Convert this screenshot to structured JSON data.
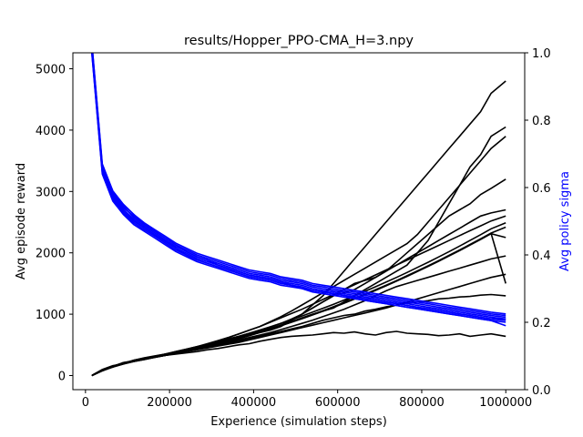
{
  "chart_data": {
    "type": "line",
    "title": "results/Hopper_PPO-CMA_H=3.npy",
    "xlabel": "Experience (simulation steps)",
    "ylabel": "Avg episode reward",
    "ylabel_right": "Avg policy sigma",
    "xlim": [
      -30000,
      1045000
    ],
    "ylim": [
      -230,
      5260
    ],
    "ylim_right": [
      0.0,
      1.0
    ],
    "x_ticks": [
      0,
      200000,
      400000,
      600000,
      800000,
      1000000
    ],
    "y_ticks": [
      0,
      1000,
      2000,
      3000,
      4000,
      5000
    ],
    "y_ticks_right": [
      0.0,
      0.2,
      0.4,
      0.6,
      0.8,
      1.0
    ],
    "y_tick_labels_right": [
      "0.0",
      "0.2",
      "0.4",
      "0.6",
      "0.8",
      "1.0"
    ],
    "grid": false,
    "colors": {
      "reward": "#000000",
      "sigma": "#0000ff",
      "right_label": "#0000ff"
    },
    "x": [
      15000,
      40000,
      65000,
      90000,
      115000,
      140000,
      165000,
      190000,
      215000,
      240000,
      265000,
      290000,
      315000,
      340000,
      365000,
      390000,
      415000,
      440000,
      465000,
      490000,
      515000,
      540000,
      565000,
      590000,
      615000,
      640000,
      665000,
      690000,
      715000,
      740000,
      765000,
      790000,
      815000,
      840000,
      865000,
      890000,
      915000,
      940000,
      965000,
      1000000
    ],
    "reward_series": [
      {
        "values": [
          0,
          80,
          150,
          200,
          240,
          270,
          300,
          330,
          350,
          370,
          390,
          420,
          440,
          470,
          500,
          520,
          560,
          590,
          620,
          640,
          650,
          660,
          680,
          700,
          690,
          710,
          680,
          660,
          700,
          720,
          690,
          680,
          670,
          650,
          660,
          680,
          640,
          660,
          680,
          640
        ]
      },
      {
        "values": [
          0,
          90,
          140,
          210,
          230,
          280,
          310,
          340,
          370,
          400,
          420,
          460,
          500,
          530,
          560,
          600,
          640,
          680,
          720,
          760,
          800,
          850,
          900,
          940,
          980,
          1000,
          1050,
          1080,
          1120,
          1150,
          1180,
          1200,
          1220,
          1250,
          1260,
          1280,
          1290,
          1310,
          1320,
          1300
        ]
      },
      {
        "values": [
          0,
          100,
          160,
          190,
          250,
          290,
          320,
          350,
          380,
          420,
          460,
          500,
          540,
          580,
          620,
          660,
          700,
          740,
          800,
          900,
          1000,
          1100,
          1200,
          1300,
          1400,
          1500,
          1550,
          1600,
          1700,
          1800,
          1900,
          2000,
          2100,
          2200,
          2300,
          2400,
          2500,
          2600,
          2650,
          2700
        ]
      },
      {
        "values": [
          0,
          85,
          150,
          210,
          240,
          270,
          310,
          340,
          380,
          410,
          450,
          480,
          520,
          560,
          600,
          650,
          700,
          760,
          820,
          880,
          940,
          1000,
          1050,
          1100,
          1200,
          1300,
          1400,
          1500,
          1600,
          1700,
          1800,
          2000,
          2200,
          2500,
          2800,
          3100,
          3400,
          3600,
          3900,
          4050
        ]
      },
      {
        "values": [
          0,
          95,
          155,
          200,
          250,
          280,
          300,
          350,
          390,
          430,
          470,
          510,
          550,
          600,
          640,
          690,
          740,
          790,
          850,
          920,
          1000,
          1100,
          1200,
          1300,
          1350,
          1400,
          1500,
          1600,
          1700,
          1850,
          2000,
          2150,
          2300,
          2450,
          2600,
          2700,
          2800,
          2950,
          3050,
          3200
        ]
      },
      {
        "values": [
          0,
          75,
          140,
          190,
          230,
          260,
          300,
          330,
          360,
          400,
          430,
          460,
          500,
          540,
          580,
          620,
          660,
          700,
          750,
          800,
          850,
          900,
          960,
          1020,
          1080,
          1150,
          1220,
          1300,
          1380,
          1450,
          1500,
          1550,
          1600,
          1650,
          1700,
          1750,
          1800,
          1850,
          1900,
          1950
        ]
      },
      {
        "values": [
          0,
          90,
          150,
          200,
          240,
          280,
          310,
          340,
          380,
          420,
          460,
          500,
          560,
          620,
          680,
          740,
          800,
          880,
          960,
          1050,
          1150,
          1250,
          1350,
          1450,
          1550,
          1650,
          1750,
          1850,
          1950,
          2050,
          2150,
          2300,
          2500,
          2700,
          2900,
          3100,
          3300,
          3500,
          3700,
          3900
        ]
      },
      {
        "values": [
          0,
          80,
          145,
          195,
          235,
          270,
          300,
          330,
          360,
          390,
          420,
          450,
          480,
          510,
          540,
          580,
          620,
          660,
          700,
          740,
          780,
          820,
          860,
          900,
          940,
          980,
          1020,
          1060,
          1100,
          1150,
          1200,
          1250,
          1300,
          1350,
          1400,
          1450,
          1500,
          1550,
          1600,
          1650
        ]
      },
      {
        "values": [
          0,
          88,
          152,
          205,
          245,
          285,
          315,
          350,
          390,
          430,
          470,
          520,
          570,
          620,
          680,
          740,
          800,
          870,
          940,
          1010,
          1080,
          1160,
          1240,
          1320,
          1400,
          1480,
          1560,
          1640,
          1720,
          1800,
          1880,
          1960,
          2040,
          2120,
          2200,
          2280,
          2360,
          2440,
          2520,
          2600
        ]
      },
      {
        "values": [
          0,
          92,
          148,
          198,
          238,
          272,
          305,
          338,
          372,
          408,
          446,
          486,
          528,
          572,
          618,
          666,
          716,
          768,
          822,
          878,
          936,
          996,
          1058,
          1122,
          1188,
          1256,
          1326,
          1398,
          1472,
          1548,
          1626,
          1706,
          1788,
          1872,
          1958,
          2046,
          2136,
          2228,
          2322,
          2418
        ]
      },
      {
        "values": [
          0,
          82,
          138,
          188,
          228,
          262,
          295,
          328,
          362,
          398,
          436,
          476,
          518,
          562,
          608,
          656,
          706,
          758,
          812,
          868,
          926,
          986,
          1048,
          1112,
          1178,
          1246,
          1316,
          1388,
          1462,
          1538,
          1616,
          1696,
          1778,
          1862,
          1948,
          2036,
          2126,
          2218,
          2312,
          2250
        ]
      },
      {
        "values": [
          0,
          86,
          146,
          196,
          236,
          268,
          302,
          336,
          370,
          406,
          444,
          484,
          526,
          570,
          616,
          664,
          714,
          766,
          820,
          900,
          1000,
          1150,
          1300,
          1500,
          1700,
          1900,
          2100,
          2300,
          2500,
          2700,
          2900,
          3100,
          3300,
          3500,
          3700,
          3900,
          4100,
          4300,
          4600,
          4800
        ]
      },
      {
        "values": [
          0,
          78,
          142,
          192,
          232,
          266,
          298,
          332,
          366,
          402,
          440,
          480,
          522,
          566,
          612,
          660,
          710,
          762,
          816,
          872,
          930,
          990,
          1052,
          1116,
          1182,
          1250,
          1320,
          1392,
          1466,
          1542,
          1620,
          1700,
          1782,
          1866,
          1952,
          2040,
          2130,
          2222,
          2316,
          1500
        ]
      },
      {
        "values": [
          0,
          94,
          154,
          204,
          244,
          278,
          312,
          346,
          382,
          420,
          460,
          502,
          546,
          592,
          640,
          690,
          742,
          796,
          852,
          910,
          970,
          1032,
          1096,
          1162,
          1230,
          1300,
          1372,
          1446,
          1522,
          1600,
          1680,
          1762,
          1846,
          1932,
          2020,
          2110,
          2202,
          2296,
          2392,
          2490
        ]
      }
    ],
    "sigma_series": [
      {
        "values": [
          1.02,
          0.66,
          0.58,
          0.54,
          0.515,
          0.49,
          0.47,
          0.45,
          0.43,
          0.415,
          0.4,
          0.39,
          0.38,
          0.37,
          0.36,
          0.35,
          0.345,
          0.34,
          0.33,
          0.325,
          0.32,
          0.31,
          0.305,
          0.3,
          0.295,
          0.29,
          0.285,
          0.28,
          0.275,
          0.27,
          0.265,
          0.26,
          0.255,
          0.25,
          0.245,
          0.24,
          0.235,
          0.23,
          0.225,
          0.22
        ]
      },
      {
        "values": [
          1.01,
          0.65,
          0.57,
          0.53,
          0.5,
          0.48,
          0.46,
          0.44,
          0.42,
          0.405,
          0.39,
          0.38,
          0.37,
          0.36,
          0.35,
          0.34,
          0.335,
          0.33,
          0.32,
          0.315,
          0.31,
          0.3,
          0.295,
          0.29,
          0.285,
          0.28,
          0.275,
          0.27,
          0.265,
          0.26,
          0.255,
          0.25,
          0.245,
          0.24,
          0.235,
          0.23,
          0.225,
          0.22,
          0.215,
          0.21
        ]
      },
      {
        "values": [
          1.03,
          0.67,
          0.59,
          0.55,
          0.52,
          0.495,
          0.475,
          0.455,
          0.435,
          0.42,
          0.405,
          0.395,
          0.385,
          0.375,
          0.365,
          0.355,
          0.35,
          0.345,
          0.335,
          0.33,
          0.325,
          0.315,
          0.31,
          0.305,
          0.3,
          0.295,
          0.29,
          0.285,
          0.28,
          0.275,
          0.27,
          0.265,
          0.26,
          0.255,
          0.25,
          0.245,
          0.24,
          0.235,
          0.23,
          0.225
        ]
      },
      {
        "values": [
          1.0,
          0.64,
          0.56,
          0.52,
          0.49,
          0.47,
          0.45,
          0.43,
          0.41,
          0.395,
          0.38,
          0.37,
          0.36,
          0.35,
          0.34,
          0.33,
          0.325,
          0.32,
          0.31,
          0.305,
          0.3,
          0.29,
          0.285,
          0.28,
          0.275,
          0.27,
          0.265,
          0.26,
          0.255,
          0.25,
          0.245,
          0.24,
          0.235,
          0.23,
          0.225,
          0.22,
          0.215,
          0.21,
          0.205,
          0.2
        ]
      },
      {
        "values": [
          1.02,
          0.66,
          0.585,
          0.545,
          0.51,
          0.485,
          0.465,
          0.445,
          0.425,
          0.41,
          0.395,
          0.385,
          0.375,
          0.365,
          0.355,
          0.345,
          0.34,
          0.335,
          0.325,
          0.32,
          0.315,
          0.305,
          0.3,
          0.295,
          0.29,
          0.285,
          0.28,
          0.275,
          0.27,
          0.265,
          0.26,
          0.255,
          0.25,
          0.245,
          0.24,
          0.235,
          0.23,
          0.225,
          0.22,
          0.215
        ]
      },
      {
        "values": [
          1.01,
          0.655,
          0.575,
          0.535,
          0.505,
          0.48,
          0.46,
          0.44,
          0.42,
          0.4,
          0.385,
          0.375,
          0.365,
          0.355,
          0.345,
          0.335,
          0.33,
          0.325,
          0.315,
          0.31,
          0.305,
          0.295,
          0.29,
          0.285,
          0.28,
          0.275,
          0.27,
          0.265,
          0.26,
          0.255,
          0.25,
          0.245,
          0.24,
          0.235,
          0.23,
          0.225,
          0.22,
          0.215,
          0.21,
          0.205
        ]
      },
      {
        "values": [
          1.03,
          0.665,
          0.59,
          0.55,
          0.52,
          0.49,
          0.47,
          0.45,
          0.43,
          0.41,
          0.395,
          0.385,
          0.37,
          0.36,
          0.35,
          0.34,
          0.335,
          0.33,
          0.32,
          0.31,
          0.3,
          0.295,
          0.29,
          0.285,
          0.28,
          0.27,
          0.265,
          0.26,
          0.255,
          0.25,
          0.245,
          0.24,
          0.235,
          0.23,
          0.225,
          0.22,
          0.215,
          0.21,
          0.205,
          0.19
        ]
      },
      {
        "values": [
          1.0,
          0.645,
          0.565,
          0.525,
          0.495,
          0.475,
          0.455,
          0.435,
          0.415,
          0.4,
          0.385,
          0.375,
          0.365,
          0.355,
          0.345,
          0.335,
          0.33,
          0.325,
          0.315,
          0.31,
          0.305,
          0.295,
          0.29,
          0.285,
          0.28,
          0.275,
          0.27,
          0.265,
          0.26,
          0.255,
          0.25,
          0.245,
          0.24,
          0.235,
          0.23,
          0.225,
          0.22,
          0.215,
          0.21,
          0.21
        ]
      }
    ]
  }
}
